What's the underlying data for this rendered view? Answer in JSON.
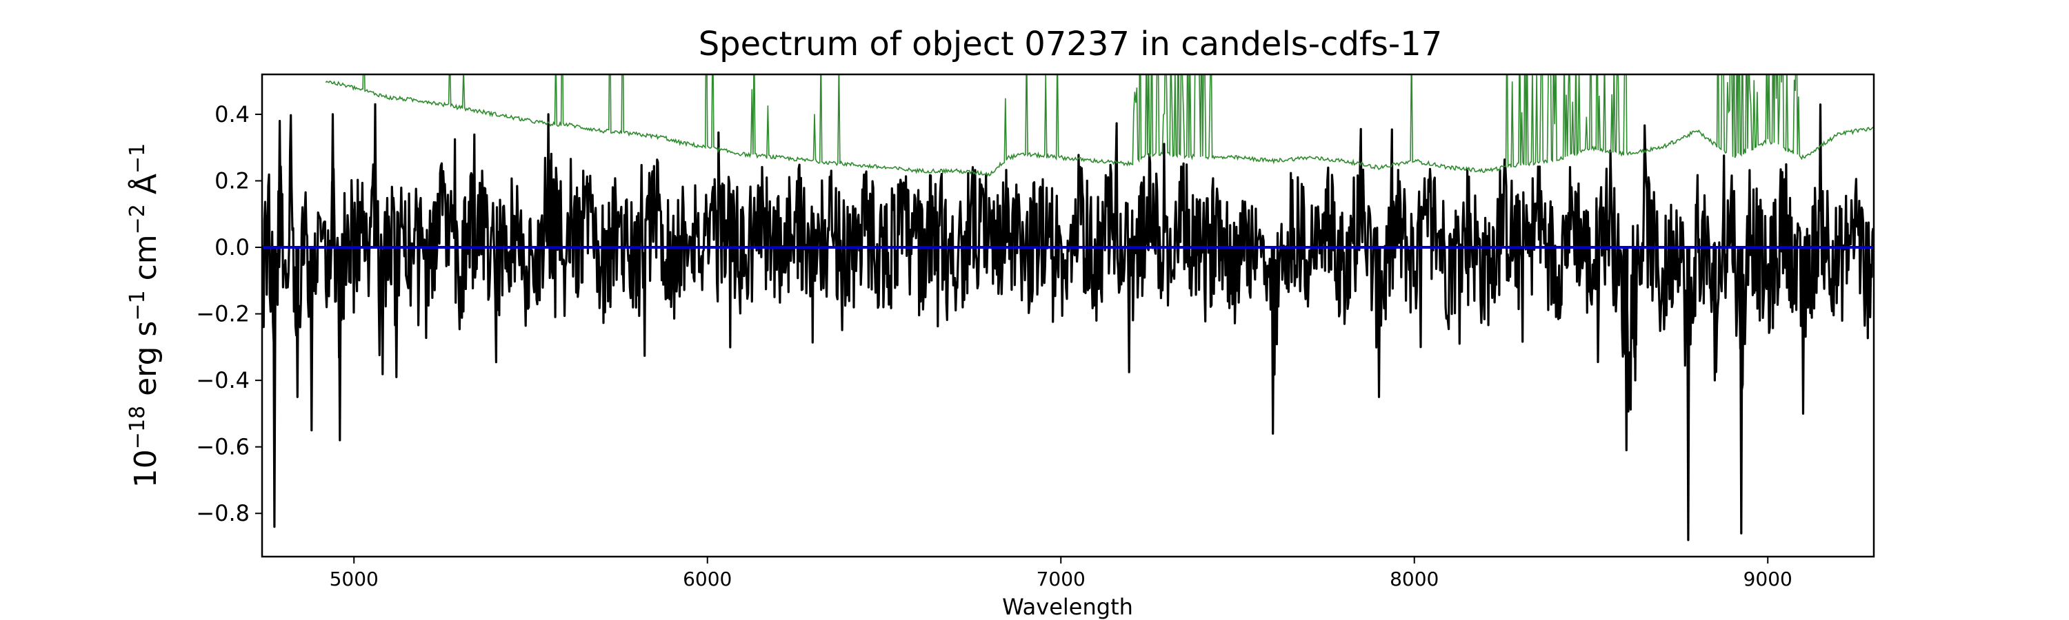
{
  "chart_data": {
    "type": "line",
    "title": "Spectrum of object 07237 in candels-cdfs-17",
    "xlabel": "Wavelength",
    "ylabel_parts": {
      "scale_base": "10",
      "scale_exp": "−18",
      "unit_erg": " erg s",
      "exp_s": "−1",
      "unit_cm": " cm",
      "exp_cm": "−2",
      "unit_angstrom": " Å",
      "exp_angstrom": "−1"
    },
    "xlim": [
      4740,
      9300
    ],
    "ylim": [
      -0.93,
      0.52
    ],
    "xticks": [
      5000,
      6000,
      7000,
      8000,
      9000
    ],
    "yticks": [
      -0.8,
      -0.6,
      -0.4,
      -0.2,
      0.0,
      0.2,
      0.4
    ],
    "ytick_labels": [
      "−0.8",
      "−0.6",
      "−0.4",
      "−0.2",
      "0.0",
      "0.2",
      "0.4"
    ],
    "xtick_labels": [
      "5000",
      "6000",
      "7000",
      "8000",
      "9000"
    ],
    "grid": false,
    "series": [
      {
        "color": "#000000",
        "style": "flux",
        "x": [
          4740,
          4760,
          4775,
          4790,
          4805,
          4820,
          4840,
          4860,
          4880,
          4900,
          4920,
          4940,
          4960,
          4980,
          5000,
          5020,
          5040,
          5060,
          5080,
          5100,
          5120,
          5140,
          5160,
          5180,
          5200,
          5250,
          5300,
          5350,
          5400,
          5450,
          5500,
          5550,
          5600,
          5650,
          5700,
          5750,
          5800,
          5850,
          5900,
          5950,
          6000,
          6050,
          6100,
          6150,
          6200,
          6250,
          6300,
          6350,
          6400,
          6450,
          6500,
          6550,
          6600,
          6650,
          6700,
          6750,
          6800,
          6850,
          6900,
          6950,
          7000,
          7050,
          7100,
          7150,
          7200,
          7250,
          7300,
          7350,
          7400,
          7450,
          7500,
          7550,
          7600,
          7650,
          7700,
          7750,
          7800,
          7850,
          7900,
          7950,
          8000,
          8050,
          8100,
          8150,
          8200,
          8250,
          8300,
          8350,
          8400,
          8450,
          8500,
          8550,
          8600,
          8625,
          8650,
          8700,
          8750,
          8775,
          8800,
          8850,
          8900,
          8925,
          8950,
          9000,
          9050,
          9100,
          9150,
          9200,
          9250,
          9280,
          9300
        ],
        "y": [
          -0.35,
          0.22,
          -0.84,
          0.38,
          -0.3,
          0.1,
          -0.45,
          0.2,
          -0.55,
          0.25,
          -0.2,
          0.4,
          -0.58,
          0.2,
          -0.1,
          0.3,
          -0.2,
          0.43,
          -0.3,
          0.28,
          -0.39,
          0.2,
          -0.34,
          0.25,
          -0.05,
          0.3,
          -0.2,
          0.32,
          -0.18,
          0.25,
          -0.3,
          0.4,
          -0.1,
          0.22,
          -0.15,
          0.18,
          -0.25,
          0.32,
          -0.15,
          0.25,
          -0.1,
          0.2,
          -0.12,
          0.22,
          -0.05,
          0.3,
          -0.1,
          0.18,
          -0.08,
          0.2,
          -0.1,
          0.15,
          -0.05,
          0.2,
          -0.1,
          0.18,
          -0.02,
          0.15,
          -0.12,
          0.22,
          -0.08,
          0.2,
          -0.1,
          0.25,
          -0.2,
          0.3,
          -0.1,
          0.22,
          -0.18,
          0.25,
          -0.25,
          0.2,
          -0.56,
          0.25,
          -0.1,
          0.2,
          -0.15,
          0.3,
          -0.45,
          0.2,
          -0.15,
          0.3,
          -0.2,
          0.22,
          -0.25,
          0.3,
          -0.1,
          0.25,
          -0.18,
          0.3,
          -0.22,
          0.28,
          -0.61,
          -0.4,
          0.3,
          -0.35,
          0.2,
          -0.88,
          0.15,
          -0.4,
          0.3,
          -0.86,
          0.2,
          -0.35,
          0.25,
          -0.5,
          0.3,
          -0.2,
          0.25,
          -0.33,
          0.2
        ]
      },
      {
        "color": "#2e8b2e",
        "style": "noise",
        "x": [
          4920,
          5000,
          5100,
          5200,
          5300,
          5400,
          5500,
          5560,
          5600,
          5700,
          5800,
          5880,
          5900,
          6000,
          6100,
          6200,
          6300,
          6400,
          6500,
          6600,
          6700,
          6800,
          6850,
          6900,
          7000,
          7100,
          7200,
          7250,
          7300,
          7400,
          7500,
          7600,
          7700,
          7800,
          7900,
          8000,
          8100,
          8200,
          8300,
          8400,
          8500,
          8600,
          8700,
          8800,
          8900,
          9000,
          9100,
          9200,
          9300
        ],
        "y": [
          0.5,
          0.48,
          0.45,
          0.44,
          0.42,
          0.4,
          0.38,
          0.37,
          0.37,
          0.35,
          0.34,
          0.33,
          0.32,
          0.3,
          0.28,
          0.27,
          0.26,
          0.25,
          0.24,
          0.23,
          0.23,
          0.22,
          0.27,
          0.28,
          0.27,
          0.26,
          0.25,
          0.28,
          0.28,
          0.27,
          0.27,
          0.26,
          0.27,
          0.26,
          0.24,
          0.26,
          0.24,
          0.23,
          0.25,
          0.26,
          0.3,
          0.28,
          0.3,
          0.35,
          0.27,
          0.32,
          0.27,
          0.34,
          0.36
        ]
      },
      {
        "color": "#0000cc",
        "style": "zero",
        "x": [
          4740,
          9300
        ],
        "y": [
          0.0,
          0.0
        ]
      }
    ]
  }
}
